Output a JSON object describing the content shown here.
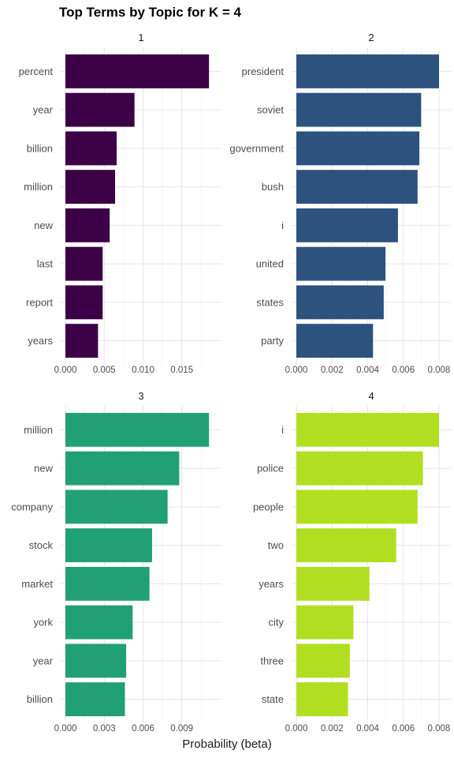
{
  "title": "Top Terms by Topic for K = 4",
  "xlabel": "Probability (beta)",
  "chart_data": [
    {
      "type": "bar",
      "orientation": "horizontal",
      "panel": "1",
      "color": "#3b0045",
      "categories": [
        "percent",
        "year",
        "billion",
        "million",
        "new",
        "last",
        "report",
        "years"
      ],
      "values": [
        0.0185,
        0.0089,
        0.0066,
        0.0064,
        0.0057,
        0.0048,
        0.0048,
        0.0042
      ],
      "xticks": [
        0.0,
        0.005,
        0.01,
        0.015
      ],
      "xtick_labels": [
        "0.000",
        "0.005",
        "0.010",
        "0.015"
      ],
      "xlim": [
        0,
        0.0195
      ]
    },
    {
      "type": "bar",
      "orientation": "horizontal",
      "panel": "2",
      "color": "#2e527e",
      "categories": [
        "president",
        "soviet",
        "government",
        "bush",
        "i",
        "united",
        "states",
        "party"
      ],
      "values": [
        0.008,
        0.007,
        0.0069,
        0.0068,
        0.0057,
        0.005,
        0.0049,
        0.0043
      ],
      "xticks": [
        0.0,
        0.002,
        0.004,
        0.006,
        0.008
      ],
      "xtick_labels": [
        "0.000",
        "0.002",
        "0.004",
        "0.006",
        "0.008"
      ],
      "xlim": [
        0,
        0.0084
      ]
    },
    {
      "type": "bar",
      "orientation": "horizontal",
      "panel": "3",
      "color": "#22a075",
      "categories": [
        "million",
        "new",
        "company",
        "stock",
        "market",
        "york",
        "year",
        "billion"
      ],
      "values": [
        0.0111,
        0.0088,
        0.0079,
        0.0067,
        0.0065,
        0.0052,
        0.0047,
        0.0046
      ],
      "xticks": [
        0.0,
        0.003,
        0.006,
        0.009
      ],
      "xtick_labels": [
        "0.000",
        "0.003",
        "0.006",
        "0.009"
      ],
      "xlim": [
        0,
        0.0117
      ]
    },
    {
      "type": "bar",
      "orientation": "horizontal",
      "panel": "4",
      "color": "#b2de22",
      "categories": [
        "i",
        "police",
        "people",
        "two",
        "years",
        "city",
        "three",
        "state"
      ],
      "values": [
        0.008,
        0.0071,
        0.0068,
        0.0056,
        0.0041,
        0.0032,
        0.003,
        0.0029
      ],
      "xticks": [
        0.0,
        0.002,
        0.004,
        0.006,
        0.008
      ],
      "xtick_labels": [
        "0.000",
        "0.002",
        "0.004",
        "0.006",
        "0.008"
      ],
      "xlim": [
        0,
        0.0084
      ]
    }
  ]
}
